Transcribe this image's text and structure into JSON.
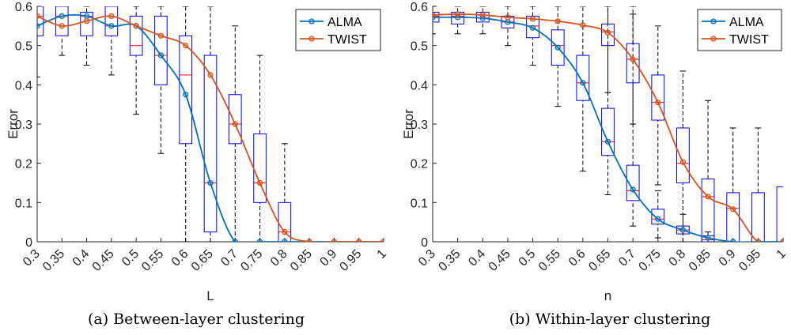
{
  "chart_data": [
    {
      "type": "line",
      "panel": "a",
      "caption": "(a) Between-layer clustering",
      "xlabel": "L",
      "ylabel": "Error",
      "x": [
        0.3,
        0.35,
        0.4,
        0.45,
        0.5,
        0.55,
        0.6,
        0.65,
        0.7,
        0.75,
        0.8,
        0.85,
        0.9,
        0.95,
        1
      ],
      "x_tick_labels": [
        "0.3",
        "0.35",
        "0.4",
        "0.45",
        "0.5",
        "0.55",
        "0.6",
        "0.65",
        "0.7",
        "0.75",
        "0.8",
        "0.85",
        "0.9",
        "0.95",
        "1"
      ],
      "y_ticks": [
        0,
        0.1,
        0.2,
        0.3,
        0.4,
        0.5,
        0.6
      ],
      "y_tick_labels": [
        "0",
        "0.1",
        "0.2",
        "0.3",
        "0.4",
        "0.5",
        "0.6"
      ],
      "ylim": [
        0,
        0.6
      ],
      "legend_position": "top-right",
      "series": [
        {
          "name": "ALMA",
          "color": "#0072BD",
          "values": [
            0.55,
            0.575,
            0.575,
            0.55,
            0.55,
            0.475,
            0.375,
            0.15,
            0,
            0,
            0,
            0,
            0,
            0,
            0
          ]
        },
        {
          "name": "TWIST",
          "color": "#D95319",
          "values": [
            0.575,
            0.55,
            0.5625,
            0.575,
            0.55,
            0.525,
            0.5,
            0.425,
            0.3,
            0.15,
            0.025,
            0,
            0,
            0,
            0
          ]
        }
      ],
      "boxes": [
        {
          "q1": 0.525,
          "med": 0.575,
          "q3": 0.6,
          "wlo": 0.42,
          "whi": 0.6
        },
        {
          "q1": 0.525,
          "med": 0.575,
          "q3": 0.6,
          "wlo": 0.475,
          "whi": 0.6
        },
        {
          "q1": 0.525,
          "med": 0.575,
          "q3": 0.585,
          "wlo": 0.45,
          "whi": 0.6
        },
        {
          "q1": 0.525,
          "med": 0.55,
          "q3": 0.6,
          "wlo": 0.425,
          "whi": 0.6
        },
        {
          "q1": 0.475,
          "med": 0.5,
          "q3": 0.575,
          "wlo": 0.325,
          "whi": 0.6
        },
        {
          "q1": 0.4,
          "med": 0.475,
          "q3": 0.575,
          "wlo": 0.225,
          "whi": 0.6
        },
        {
          "q1": 0.25,
          "med": 0.425,
          "q3": 0.525,
          "wlo": 0.0,
          "whi": 0.6
        },
        {
          "q1": 0.025,
          "med": 0.15,
          "q3": 0.475,
          "wlo": 0.0,
          "whi": 0.6
        },
        {
          "q1": 0.25,
          "med": 0.3,
          "q3": 0.375,
          "wlo": 0.0,
          "whi": 0.55
        },
        {
          "q1": 0.1,
          "med": 0.15,
          "q3": 0.275,
          "wlo": 0.0,
          "whi": 0.475
        },
        {
          "q1": 0.0,
          "med": 0.025,
          "q3": 0.1,
          "wlo": 0.0,
          "whi": 0.25
        },
        {
          "q1": 0.0,
          "med": 0.0,
          "q3": 0.0,
          "wlo": 0.0,
          "whi": 0.0
        },
        {
          "q1": 0.0,
          "med": 0.0,
          "q3": 0.0,
          "wlo": 0.0,
          "whi": 0.0
        },
        {
          "q1": 0.0,
          "med": 0.0,
          "q3": 0.0,
          "wlo": 0.0,
          "whi": 0.0
        },
        {
          "q1": 0.0,
          "med": 0.0,
          "q3": 0.0,
          "wlo": 0.0,
          "whi": 0.0
        }
      ]
    },
    {
      "type": "line",
      "panel": "b",
      "caption": "(b) Within-layer clustering",
      "xlabel": "n",
      "ylabel": "Error",
      "x": [
        0.3,
        0.35,
        0.4,
        0.45,
        0.5,
        0.55,
        0.6,
        0.65,
        0.7,
        0.75,
        0.8,
        0.85,
        0.9,
        0.95,
        1
      ],
      "x_tick_labels": [
        "0.3",
        "0.35",
        "0.4",
        "0.45",
        "0.5",
        "0.55",
        "0.6",
        "0.65",
        "0.7",
        "0.75",
        "0.8",
        "0.85",
        "0.9",
        "0.95",
        "1"
      ],
      "y_ticks": [
        0,
        0.1,
        0.2,
        0.3,
        0.4,
        0.5,
        0.6
      ],
      "y_tick_labels": [
        "0",
        "0.1",
        "0.2",
        "0.3",
        "0.4",
        "0.5",
        "0.6"
      ],
      "ylim": [
        0,
        0.6
      ],
      "legend_position": "top-right",
      "series": [
        {
          "name": "ALMA",
          "color": "#0072BD",
          "values": [
            0.572,
            0.572,
            0.57,
            0.56,
            0.545,
            0.495,
            0.405,
            0.255,
            0.133,
            0.058,
            0.03,
            0.01,
            0.0,
            0.0,
            0.0
          ]
        },
        {
          "name": "TWIST",
          "color": "#D95319",
          "values": [
            0.578,
            0.58,
            0.578,
            0.572,
            0.568,
            0.562,
            0.552,
            0.533,
            0.465,
            0.355,
            0.203,
            0.115,
            0.083,
            0.0,
            0.0
          ]
        }
      ],
      "boxes": [
        {
          "q1": 0.56,
          "med": 0.575,
          "q3": 0.585,
          "wlo": 0.53,
          "whi": 0.6
        },
        {
          "q1": 0.555,
          "med": 0.575,
          "q3": 0.585,
          "wlo": 0.53,
          "whi": 0.6
        },
        {
          "q1": 0.56,
          "med": 0.57,
          "q3": 0.585,
          "wlo": 0.53,
          "whi": 0.6
        },
        {
          "q1": 0.545,
          "med": 0.56,
          "q3": 0.575,
          "wlo": 0.5,
          "whi": 0.6
        },
        {
          "q1": 0.52,
          "med": 0.55,
          "q3": 0.575,
          "wlo": 0.45,
          "whi": 0.6
        },
        {
          "q1": 0.45,
          "med": 0.5,
          "q3": 0.54,
          "wlo": 0.345,
          "whi": 0.6
        },
        {
          "q1": 0.36,
          "med": 0.405,
          "q3": 0.475,
          "wlo": 0.18,
          "whi": 0.6
        },
        {
          "q1": 0.22,
          "med": 0.255,
          "q3": 0.34,
          "wlo": 0.12,
          "whi": 0.6
        },
        {
          "q1": 0.105,
          "med": 0.13,
          "q3": 0.195,
          "wlo": 0.04,
          "whi": 0.6
        },
        {
          "q1": 0.045,
          "med": 0.058,
          "q3": 0.083,
          "wlo": 0.01,
          "whi": 0.13
        },
        {
          "q1": 0.02,
          "med": 0.03,
          "q3": 0.04,
          "wlo": 0.0,
          "whi": 0.07
        },
        {
          "q1": 0.0,
          "med": 0.005,
          "q3": 0.015,
          "wlo": 0.0,
          "whi": 0.025
        },
        {
          "q1": 0.0,
          "med": 0.0,
          "q3": 0.0,
          "wlo": 0.0,
          "whi": 0.0
        },
        {
          "q1": 0.0,
          "med": 0.0,
          "q3": 0.0,
          "wlo": 0.0,
          "whi": 0.0
        },
        {
          "q1": 0.0,
          "med": 0.0,
          "q3": 0.0,
          "wlo": 0.0,
          "whi": 0.0
        }
      ],
      "twist_boxes": [
        {
          "q1": 0.0,
          "med": 0.0,
          "q3": 0.0,
          "wlo": 0.0,
          "whi": 0.0
        },
        {
          "q1": 0.0,
          "med": 0.0,
          "q3": 0.0,
          "wlo": 0.0,
          "whi": 0.0
        },
        {
          "q1": 0.0,
          "med": 0.0,
          "q3": 0.0,
          "wlo": 0.0,
          "whi": 0.0
        },
        {
          "q1": 0.0,
          "med": 0.0,
          "q3": 0.0,
          "wlo": 0.0,
          "whi": 0.0
        },
        {
          "q1": 0.0,
          "med": 0.0,
          "q3": 0.0,
          "wlo": 0.0,
          "whi": 0.0
        },
        {
          "q1": 0.0,
          "med": 0.0,
          "q3": 0.0,
          "wlo": 0.0,
          "whi": 0.0
        },
        {
          "q1": 0.0,
          "med": 0.0,
          "q3": 0.0,
          "wlo": 0.0,
          "whi": 0.0
        },
        {
          "q1": 0.5,
          "med": 0.535,
          "q3": 0.555,
          "wlo": 0.38,
          "whi": 0.6
        },
        {
          "q1": 0.405,
          "med": 0.465,
          "q3": 0.505,
          "wlo": 0.3,
          "whi": 0.58
        },
        {
          "q1": 0.31,
          "med": 0.355,
          "q3": 0.425,
          "wlo": 0.145,
          "whi": 0.55
        },
        {
          "q1": 0.15,
          "med": 0.2,
          "q3": 0.29,
          "wlo": 0.0,
          "whi": 0.435
        },
        {
          "q1": 0.0,
          "med": 0.115,
          "q3": 0.16,
          "wlo": 0.0,
          "whi": 0.36
        },
        {
          "q1": 0.0,
          "med": 0.085,
          "q3": 0.125,
          "wlo": 0.0,
          "whi": 0.29
        },
        {
          "q1": 0.0,
          "med": 0.0,
          "q3": 0.125,
          "wlo": 0.0,
          "whi": 0.29
        },
        {
          "q1": 0.0,
          "med": 0.0,
          "q3": 0.14,
          "wlo": 0.0,
          "whi": 0.14
        }
      ]
    }
  ]
}
